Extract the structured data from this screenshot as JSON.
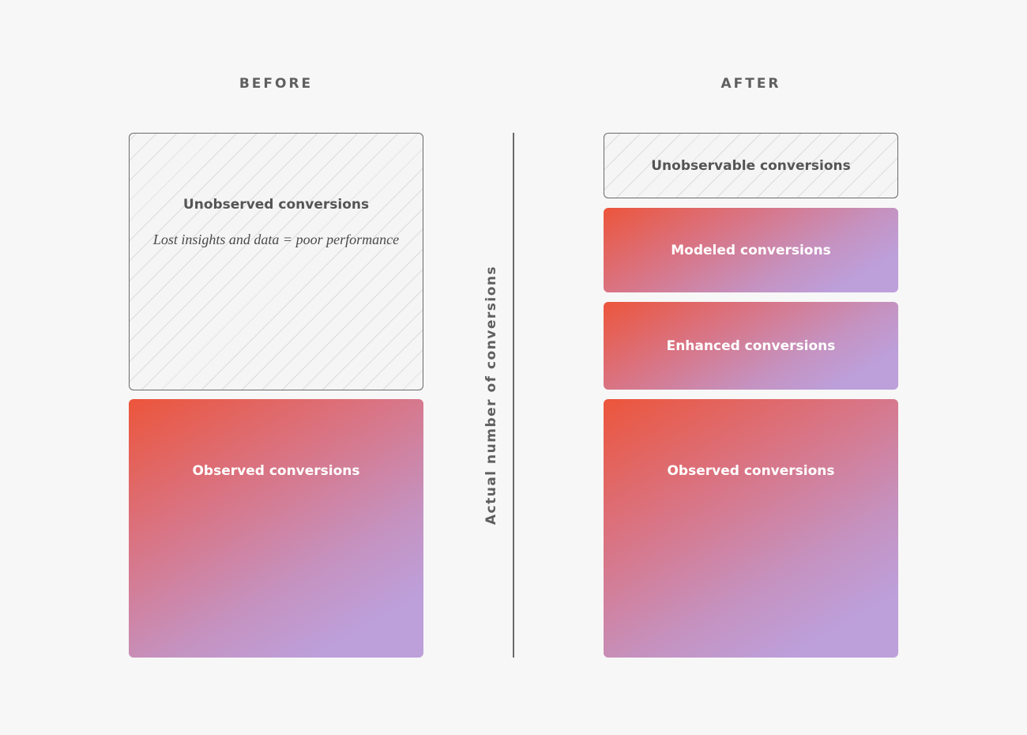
{
  "before": {
    "heading": "BEFORE",
    "unobserved": {
      "label": "Unobserved conversions",
      "note": "Lost insights and data = poor performance"
    },
    "observed": {
      "label": "Observed conversions"
    }
  },
  "after": {
    "heading": "AFTER",
    "unobservable": {
      "label": "Unobservable conversions"
    },
    "modeled": {
      "label": "Modeled conversions"
    },
    "enhanced": {
      "label": "Enhanced conversions"
    },
    "observed": {
      "label": "Observed conversions"
    }
  },
  "axis_label": "Actual number of conversions",
  "colors": {
    "background": "#f7f7f7",
    "gradient_start": "#ec553b",
    "gradient_end": "#bd9fda",
    "text_gray": "#5f5f5f",
    "outline": "#6a6a6a"
  }
}
